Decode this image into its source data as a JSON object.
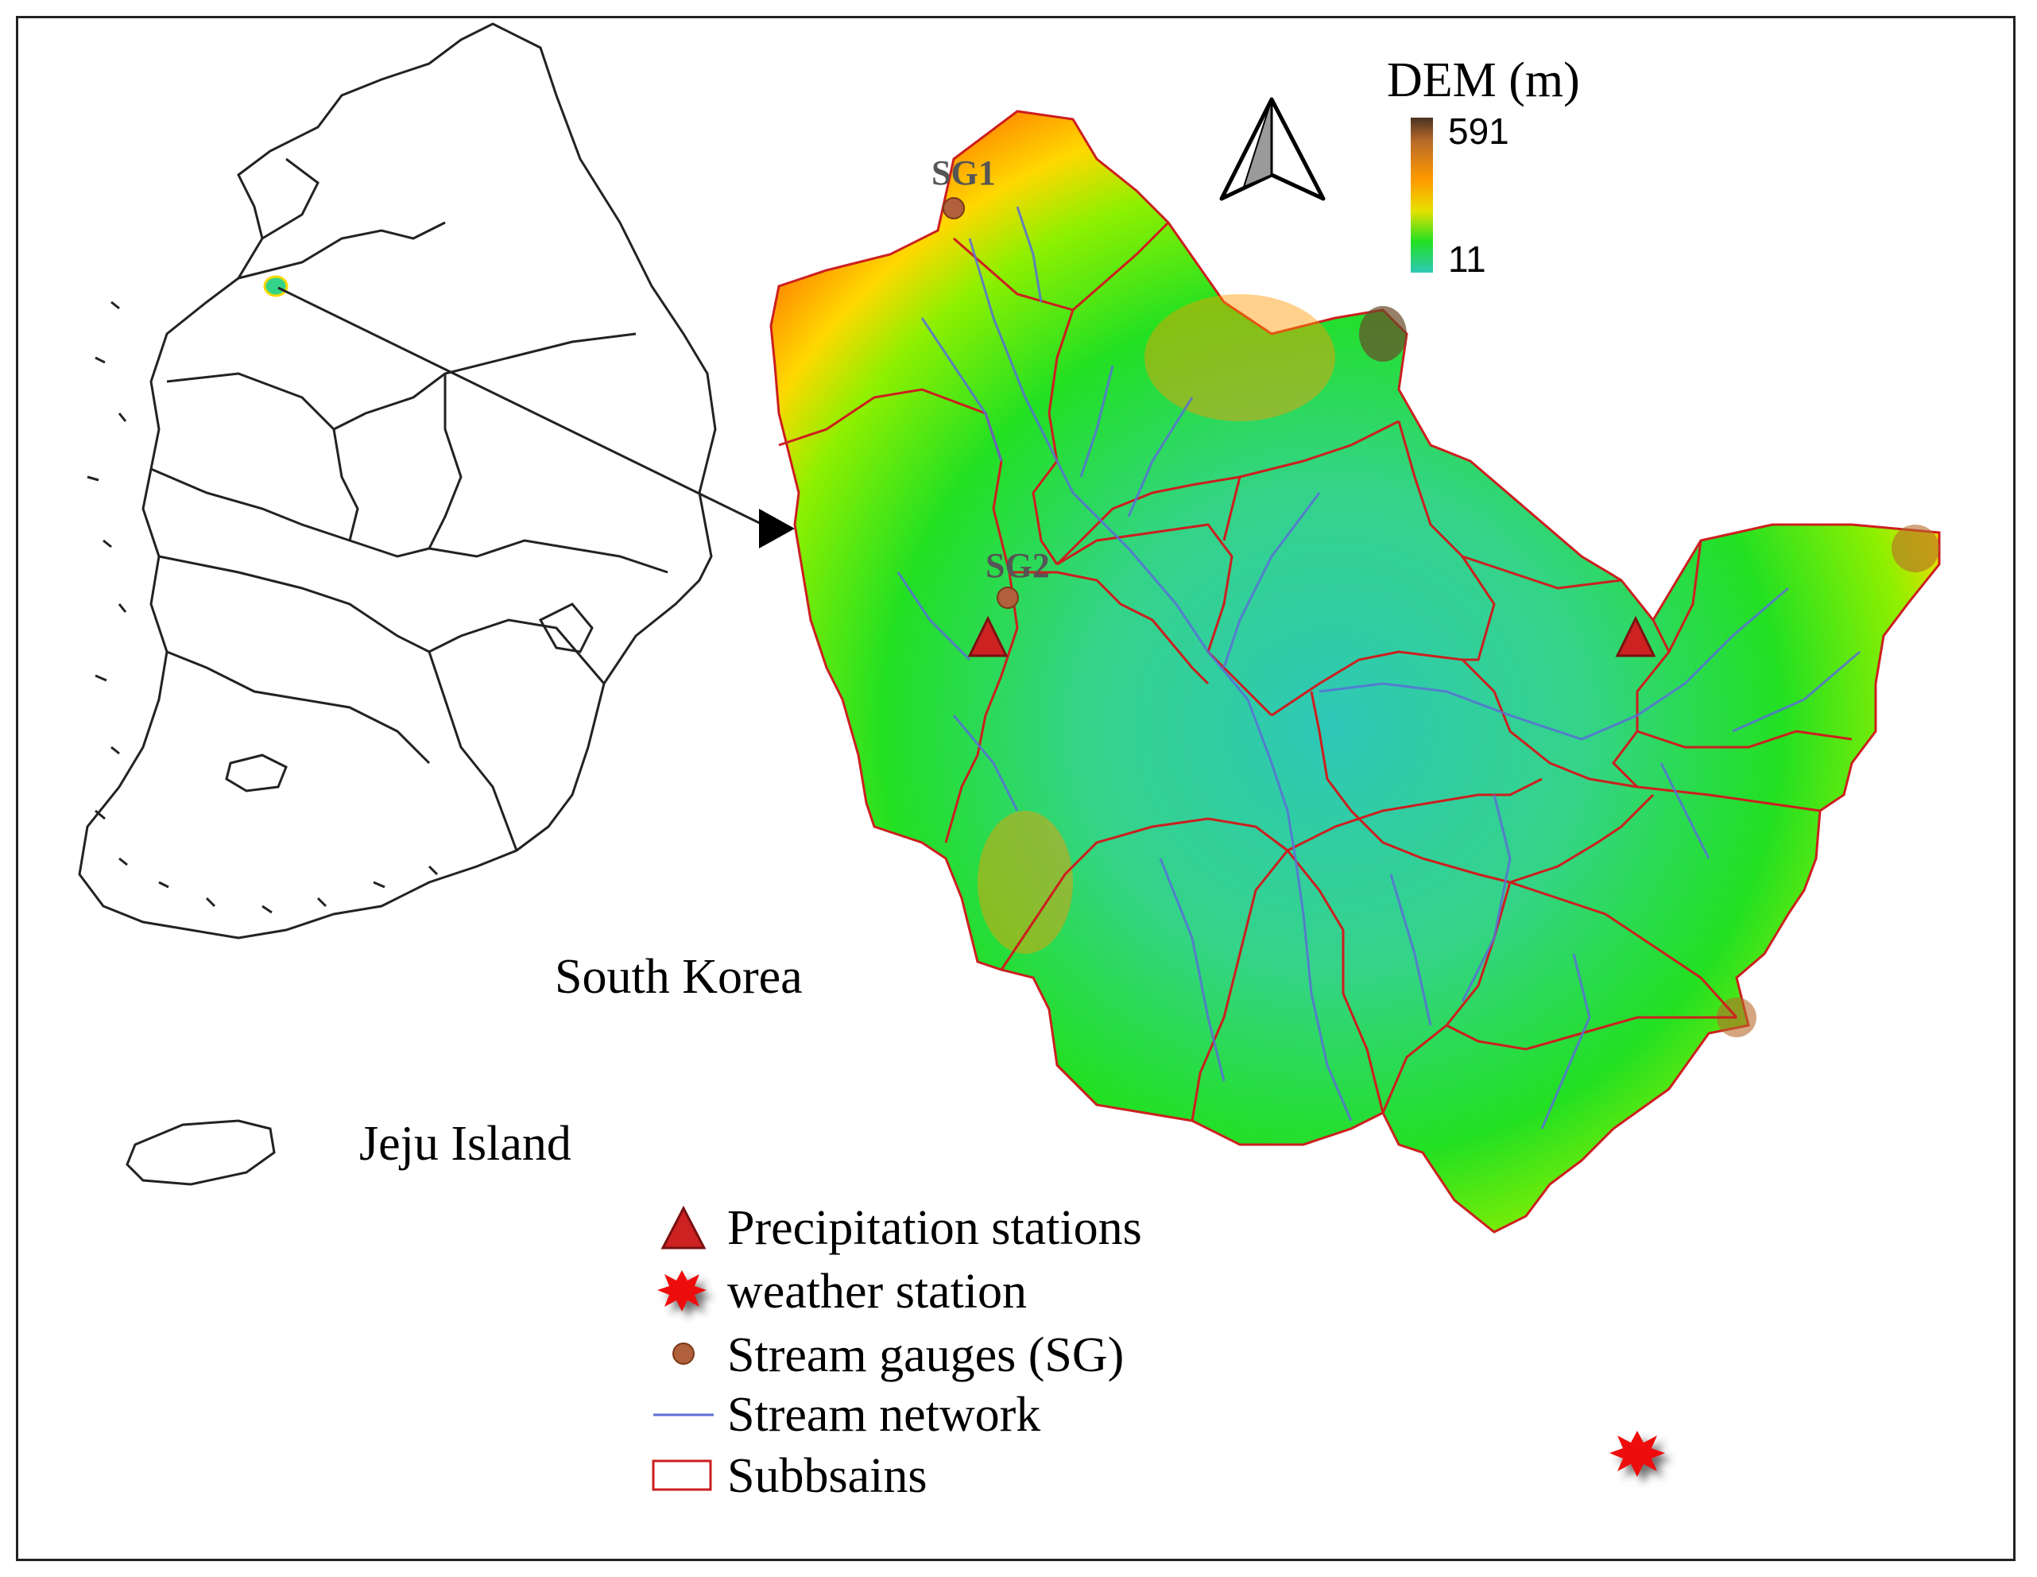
{
  "title_legend": {
    "dem_title": "DEM (m)",
    "dem_max": "591",
    "dem_min": "11"
  },
  "labels": {
    "country": "South Korea",
    "island": "Jeju Island",
    "sg1": "SG1",
    "sg2": "SG2"
  },
  "legend": {
    "items": [
      {
        "label": "Precipitation stations",
        "icon": "red-triangle-icon"
      },
      {
        "label": "weather station",
        "icon": "red-star-icon"
      },
      {
        "label": "Stream gauges (SG)",
        "icon": "brown-circle-icon"
      },
      {
        "label": "Stream network",
        "icon": "blue-line-icon"
      },
      {
        "label": "Subbsains",
        "icon": "red-rectangle-icon"
      }
    ]
  },
  "colors": {
    "dem_low": "#2ec8b8",
    "dem_mid": "#22e022",
    "dem_high": "#ff9a00",
    "dem_peak": "#4a3222",
    "subbasin_line": "#cc1f1f",
    "stream_line": "#5a6fd6",
    "gauge": "#b0603a",
    "precip": "#cc2222",
    "weather": "#ee1111"
  }
}
